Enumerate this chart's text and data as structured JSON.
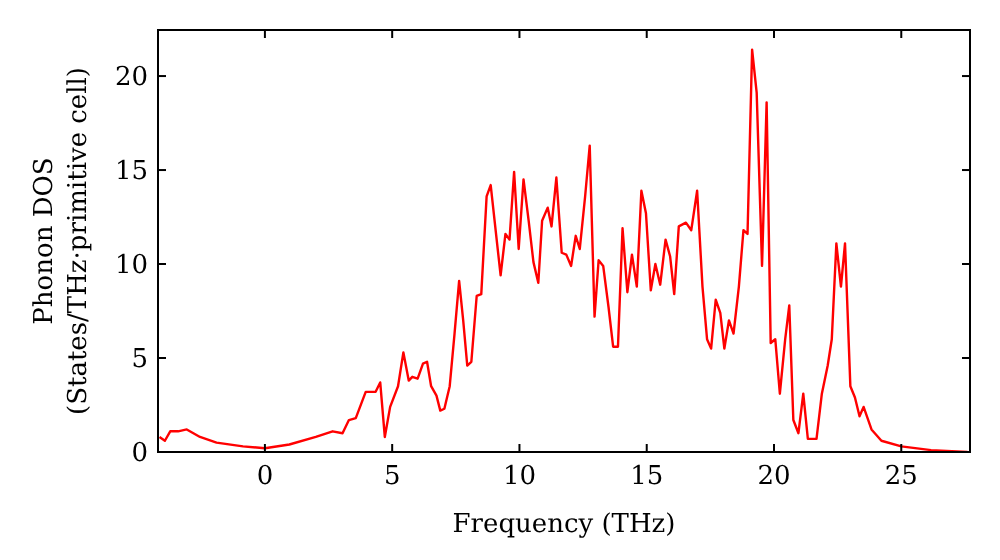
{
  "chart_data": {
    "type": "line",
    "xlabel": "Frequency (THz)",
    "ylabel": "Phonon DOS\n(States/THz·primitive cell)",
    "xlim": [
      -4.2,
      27.7
    ],
    "ylim": [
      0,
      22.45
    ],
    "xticks": [
      0,
      5,
      10,
      15,
      20,
      25
    ],
    "yticks": [
      0,
      5,
      10,
      15,
      20
    ],
    "grid": false,
    "marker": "none",
    "line_style": "solid",
    "series": [
      {
        "color": "#ff0000",
        "x": [
          -4.14,
          -3.93,
          -3.72,
          -3.41,
          -3.07,
          -2.55,
          -1.9,
          -0.86,
          0,
          0.96,
          2.0,
          2.66,
          3.05,
          3.3,
          3.57,
          3.96,
          4.35,
          4.53,
          4.71,
          4.92,
          5.23,
          5.44,
          5.65,
          5.79,
          6.0,
          6.21,
          6.37,
          6.53,
          6.74,
          6.89,
          7.05,
          7.26,
          7.45,
          7.63,
          7.79,
          7.95,
          8.11,
          8.32,
          8.5,
          8.71,
          8.87,
          9.08,
          9.26,
          9.45,
          9.61,
          9.79,
          9.97,
          10.16,
          10.37,
          10.55,
          10.74,
          10.89,
          11.11,
          11.26,
          11.45,
          11.66,
          11.84,
          12.03,
          12.21,
          12.37,
          12.58,
          12.76,
          12.95,
          13.11,
          13.29,
          13.5,
          13.68,
          13.87,
          14.05,
          14.24,
          14.42,
          14.61,
          14.79,
          14.97,
          15.16,
          15.34,
          15.53,
          15.74,
          15.92,
          16.08,
          16.26,
          16.54,
          16.75,
          16.98,
          17.19,
          17.37,
          17.53,
          17.71,
          17.89,
          18.05,
          18.23,
          18.41,
          18.62,
          18.8,
          18.96,
          19.14,
          19.32,
          19.53,
          19.71,
          19.87,
          20.05,
          20.23,
          20.44,
          20.6,
          20.76,
          20.96,
          21.15,
          21.33,
          21.67,
          21.88,
          22.11,
          22.27,
          22.45,
          22.63,
          22.79,
          23.0,
          23.18,
          23.36,
          23.52,
          23.83,
          24.22,
          25.0,
          26.17,
          27.6
        ],
        "values": [
          0.8,
          0.6,
          1.1,
          1.1,
          1.2,
          0.8,
          0.5,
          0.3,
          0.2,
          0.4,
          0.8,
          1.1,
          1.0,
          1.7,
          1.8,
          3.2,
          3.2,
          3.7,
          0.8,
          2.4,
          3.5,
          5.3,
          3.8,
          4.0,
          3.9,
          4.7,
          4.8,
          3.5,
          3.0,
          2.2,
          2.3,
          3.5,
          6.3,
          9.1,
          7.0,
          4.6,
          4.8,
          8.3,
          8.4,
          13.6,
          14.2,
          11.6,
          9.4,
          11.6,
          11.3,
          14.9,
          10.8,
          14.5,
          12.2,
          10.1,
          9.0,
          12.3,
          13.0,
          12.0,
          14.6,
          10.6,
          10.5,
          9.9,
          11.5,
          10.8,
          13.6,
          16.3,
          7.2,
          10.2,
          9.9,
          7.7,
          5.6,
          5.6,
          11.9,
          8.5,
          10.5,
          8.8,
          13.9,
          12.7,
          8.6,
          10.0,
          8.9,
          11.3,
          10.4,
          8.4,
          12.0,
          12.2,
          11.8,
          13.9,
          8.8,
          6.0,
          5.5,
          8.1,
          7.4,
          5.5,
          7.0,
          6.3,
          8.8,
          11.8,
          11.6,
          21.4,
          19.1,
          9.9,
          18.6,
          5.8,
          6.0,
          3.1,
          6.0,
          7.8,
          1.7,
          1.0,
          3.1,
          0.7,
          0.7,
          3.1,
          4.6,
          6.0,
          11.1,
          8.8,
          11.1,
          3.5,
          2.9,
          1.9,
          2.4,
          1.2,
          0.6,
          0.3,
          0.1,
          0.0
        ]
      }
    ]
  }
}
